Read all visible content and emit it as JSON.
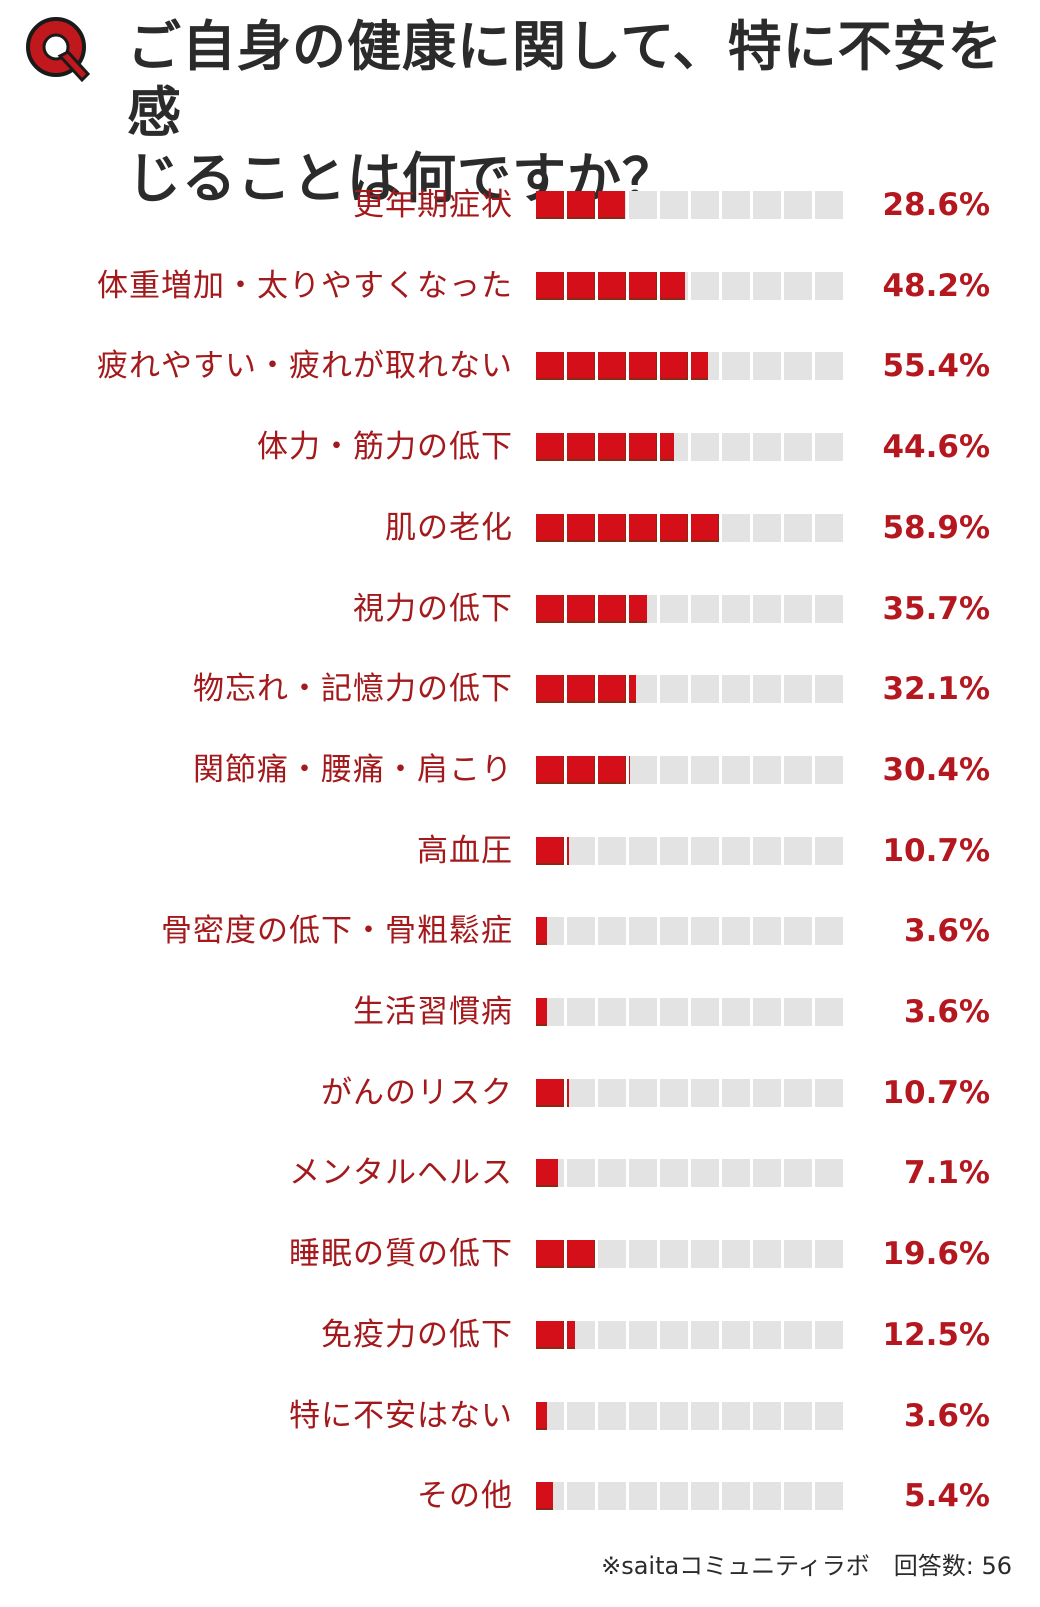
{
  "header": {
    "q_badge": "Q",
    "title_line1": "ご自身の健康に関して、特に不安を感",
    "title_line2": "じることは何ですか？"
  },
  "colors": {
    "fill": "#d50f1a",
    "empty": "#e3e3e3",
    "label": "#a3191c",
    "percent": "#b5171f",
    "title": "#2b2b2b"
  },
  "chart_data": {
    "type": "bar",
    "orientation": "horizontal",
    "title": "ご自身の健康に関して、特に不安を感じることは何ですか？",
    "xlabel": "",
    "ylabel": "",
    "xlim": [
      0,
      100
    ],
    "segments": 10,
    "grid": false,
    "legend": null,
    "categories": [
      "更年期症状",
      "体重増加・太りやすくなった",
      "疲れやすい・疲れが取れない",
      "体力・筋力の低下",
      "肌の老化",
      "視力の低下",
      "物忘れ・記憶力の低下",
      "関節痛・腰痛・肩こり",
      "高血圧",
      "骨密度の低下・骨粗鬆症",
      "生活習慣病",
      "がんのリスク",
      "メンタルヘルス",
      "睡眠の質の低下",
      "免疫力の低下",
      "特に不安はない",
      "その他"
    ],
    "values": [
      28.6,
      48.2,
      55.4,
      44.6,
      58.9,
      35.7,
      32.1,
      30.4,
      10.7,
      3.6,
      3.6,
      10.7,
      7.1,
      19.6,
      12.5,
      3.6,
      5.4
    ],
    "value_labels": [
      "28.6%",
      "48.2%",
      "55.4%",
      "44.6%",
      "58.9%",
      "35.7%",
      "32.1%",
      "30.4%",
      "10.7%",
      "3.6%",
      "3.6%",
      "10.7%",
      "7.1%",
      "19.6%",
      "12.5%",
      "3.6%",
      "5.4%"
    ],
    "unit": "%"
  },
  "footer": {
    "source": "※saitaコミュニティラボ　回答数: 56"
  }
}
